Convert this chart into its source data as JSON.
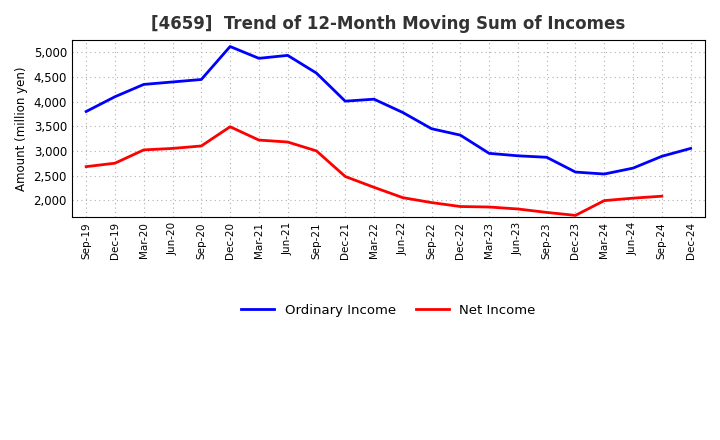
{
  "title": "[4659]  Trend of 12-Month Moving Sum of Incomes",
  "ylabel": "Amount (million yen)",
  "x_labels": [
    "Sep-19",
    "Dec-19",
    "Mar-20",
    "Jun-20",
    "Sep-20",
    "Dec-20",
    "Mar-21",
    "Jun-21",
    "Sep-21",
    "Dec-21",
    "Mar-22",
    "Jun-22",
    "Sep-22",
    "Dec-22",
    "Mar-23",
    "Jun-23",
    "Sep-23",
    "Dec-23",
    "Mar-24",
    "Jun-24",
    "Sep-24",
    "Dec-24"
  ],
  "ordinary_income": [
    3800,
    4100,
    4350,
    4400,
    4450,
    5120,
    4880,
    4940,
    4580,
    4010,
    4050,
    3780,
    3450,
    3320,
    2950,
    2900,
    2870,
    2570,
    2530,
    2650,
    2890,
    3050
  ],
  "net_income": [
    2680,
    2750,
    3020,
    3050,
    3100,
    3490,
    3220,
    3180,
    3000,
    2480,
    2260,
    2050,
    1950,
    1870,
    1860,
    1820,
    1750,
    1690,
    1990,
    2040,
    2080,
    null
  ],
  "ordinary_color": "#0000ff",
  "net_color": "#ff0000",
  "ylim_min": 1650,
  "ylim_max": 5250,
  "yticks": [
    2000,
    2500,
    3000,
    3500,
    4000,
    4500,
    5000
  ],
  "background_color": "#ffffff",
  "grid_color": "#b0b0b0",
  "title_fontsize": 12,
  "title_color": "#333333",
  "legend_entries": [
    "Ordinary Income",
    "Net Income"
  ]
}
